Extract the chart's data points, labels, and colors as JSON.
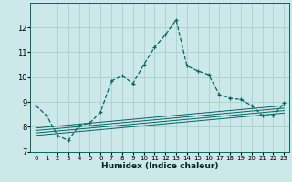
{
  "xlabel": "Humidex (Indice chaleur)",
  "ylabel": "",
  "bg_color": "#cce8e8",
  "grid_color": "#aacfcf",
  "line_color": "#006666",
  "xlim": [
    -0.5,
    23.5
  ],
  "ylim": [
    7,
    13
  ],
  "yticks": [
    7,
    8,
    9,
    10,
    11,
    12
  ],
  "xticks": [
    0,
    1,
    2,
    3,
    4,
    5,
    6,
    7,
    8,
    9,
    10,
    11,
    12,
    13,
    14,
    15,
    16,
    17,
    18,
    19,
    20,
    21,
    22,
    23
  ],
  "main_x": [
    0,
    1,
    2,
    3,
    4,
    5,
    6,
    7,
    8,
    9,
    10,
    11,
    12,
    13,
    14,
    15,
    16,
    17,
    18,
    19,
    20,
    21,
    22,
    23
  ],
  "main_y": [
    8.85,
    8.45,
    7.65,
    7.45,
    8.05,
    8.15,
    8.6,
    9.85,
    10.05,
    9.75,
    10.5,
    11.2,
    11.7,
    12.3,
    10.45,
    10.25,
    10.1,
    9.3,
    9.15,
    9.1,
    8.85,
    8.45,
    8.45,
    8.95
  ],
  "line1_y": [
    7.95,
    8.85
  ],
  "line2_y": [
    7.85,
    8.75
  ],
  "line3_y": [
    7.75,
    8.65
  ],
  "line4_y": [
    7.65,
    8.55
  ]
}
